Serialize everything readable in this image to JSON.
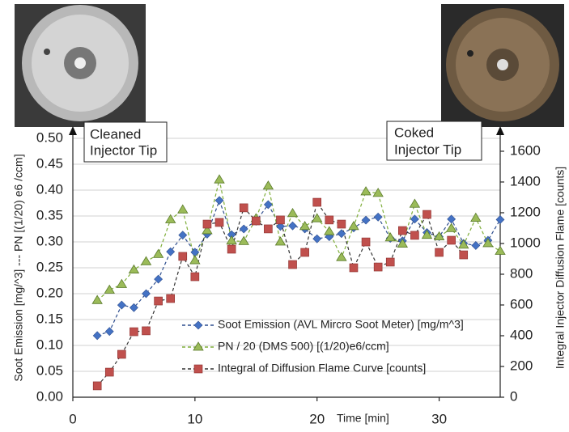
{
  "chart_data": {
    "type": "line",
    "xlabel": "Time [min]",
    "ylabel": "Soot Emission [mg/^3]   ---   PN [(1/20) e6 /ccm]",
    "y2label": "Integral Injector Diffusion Flame [counts]",
    "annotations": [
      {
        "lines": [
          "Cleaned",
          "Injector Tip"
        ]
      },
      {
        "lines": [
          "Coked",
          "Injector Tip"
        ]
      }
    ],
    "x": [
      2,
      3,
      4,
      5,
      6,
      7,
      8,
      9,
      10,
      11,
      12,
      13,
      14,
      15,
      16,
      17,
      18,
      19,
      20,
      21,
      22,
      23,
      24,
      25,
      26,
      27,
      28,
      29,
      30,
      31,
      32,
      33,
      34,
      35
    ],
    "series": [
      {
        "name": "Soot Emission (AVL Mircro Soot Meter) [mg/m^3]",
        "color": "#4472c4",
        "line_color": "#2f4f8f",
        "marker": "diamond",
        "values": [
          0.119,
          0.127,
          0.178,
          0.173,
          0.2,
          0.228,
          0.281,
          0.313,
          0.28,
          0.315,
          0.38,
          0.314,
          0.325,
          0.34,
          0.372,
          0.33,
          0.331,
          0.325,
          0.306,
          0.31,
          0.316,
          0.327,
          0.342,
          0.348,
          0.307,
          0.302,
          0.344,
          0.318,
          0.31,
          0.344,
          0.297,
          0.293,
          0.303,
          0.343
        ]
      },
      {
        "name": "PN / 20 (DMS 500) [(1/20)e6/ccm]",
        "color": "#9bbb59",
        "line_color": "#7fae3a",
        "marker": "triangle",
        "values": [
          0.187,
          0.207,
          0.218,
          0.246,
          0.262,
          0.276,
          0.343,
          0.362,
          0.264,
          0.322,
          0.42,
          0.302,
          0.301,
          0.345,
          0.408,
          0.3,
          0.355,
          0.33,
          0.345,
          0.32,
          0.27,
          0.33,
          0.397,
          0.394,
          0.308,
          0.296,
          0.373,
          0.313,
          0.31,
          0.326,
          0.294,
          0.346,
          0.297,
          0.282
        ]
      },
      {
        "name": "Integral of Diffusion Flame Curve [counts]",
        "color": "#c0504d",
        "line_color": "#333333",
        "marker": "square",
        "axis": "y2",
        "values": [
          74,
          163,
          279,
          426,
          432,
          626,
          642,
          916,
          784,
          1126,
          1137,
          963,
          1232,
          1147,
          1095,
          1153,
          863,
          942,
          1268,
          1153,
          1126,
          842,
          1010,
          847,
          879,
          1084,
          1053,
          1189,
          942,
          1021,
          926,
          null,
          null,
          null
        ]
      }
    ],
    "xlim": [
      0,
      35
    ],
    "xticks": [
      0,
      10,
      20,
      30
    ],
    "ylim": [
      0,
      0.5
    ],
    "yticks": [
      {
        "value": 0,
        "label": "0.00"
      },
      {
        "value": 0.05,
        "label": "0.05"
      },
      {
        "value": 0.1,
        "label": "0.10"
      },
      {
        "value": 0.15,
        "label": "0.15"
      },
      {
        "value": 0.2,
        "label": "0.20"
      },
      {
        "value": 0.25,
        "label": "0.25"
      },
      {
        "value": 0.3,
        "label": "0.30"
      },
      {
        "value": 0.35,
        "label": "0.35"
      },
      {
        "value": 0.4,
        "label": "0.40"
      },
      {
        "value": 0.45,
        "label": "0.45"
      },
      {
        "value": 0.5,
        "label": "0.50"
      }
    ],
    "y2lim": [
      0,
      1684
    ],
    "y2ticks": [
      0,
      200,
      400,
      600,
      800,
      1000,
      1200,
      1400,
      1600
    ],
    "grid": true
  }
}
